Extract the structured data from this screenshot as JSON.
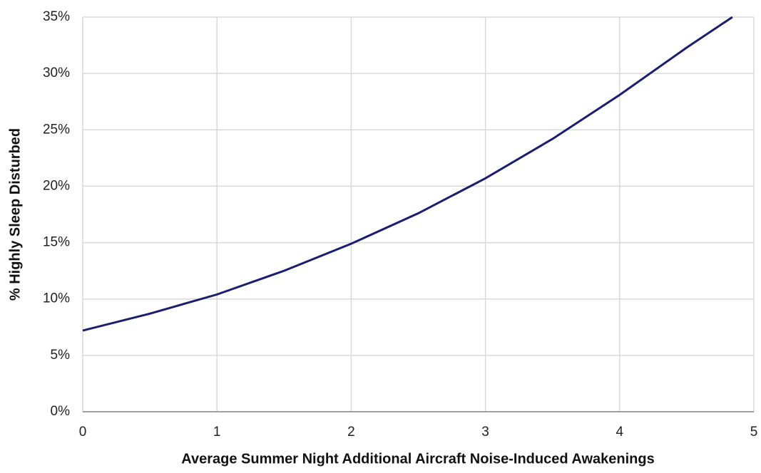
{
  "chart_data": {
    "type": "line",
    "x_label": "Average Summer Night Additional Aircraft Noise-Induced Awakenings",
    "y_label": "% Highly Sleep Disturbed",
    "x": [
      0,
      0.5,
      1,
      1.5,
      2,
      2.5,
      3,
      3.5,
      4,
      4.5,
      4.84
    ],
    "values": [
      7.2,
      8.7,
      10.4,
      12.5,
      14.9,
      17.6,
      20.7,
      24.2,
      28.1,
      32.3,
      35.0
    ],
    "color": "#1b1d6e",
    "xlim": [
      0,
      5
    ],
    "xticks": [
      0,
      1,
      2,
      3,
      4,
      5
    ],
    "ylim": [
      0,
      35
    ],
    "yticks": [
      {
        "value": 0,
        "label": "0%"
      },
      {
        "value": 5,
        "label": "5%"
      },
      {
        "value": 10,
        "label": "10%"
      },
      {
        "value": 15,
        "label": "15%"
      },
      {
        "value": 20,
        "label": "20%"
      },
      {
        "value": 25,
        "label": "25%"
      },
      {
        "value": 30,
        "label": "30%"
      },
      {
        "value": 35,
        "label": "35%"
      }
    ],
    "grid": true
  }
}
